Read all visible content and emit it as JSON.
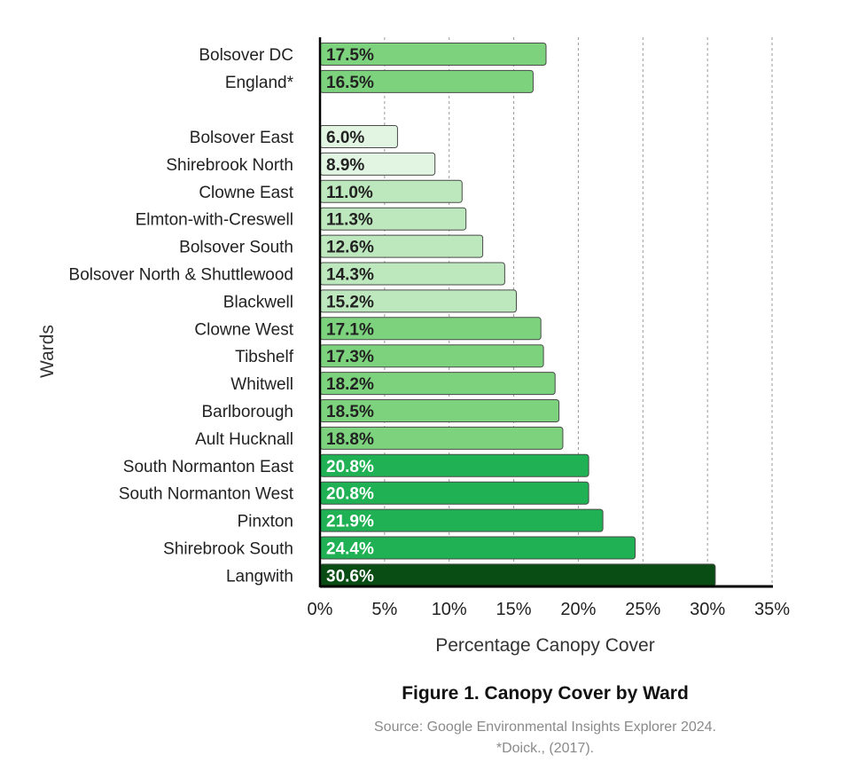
{
  "chart_data": {
    "type": "bar",
    "orientation": "horizontal",
    "title": "Figure 1. Canopy Cover by Ward",
    "source_lines": [
      "Source: Google Environmental Insights Explorer 2024.",
      "*Doick., (2017)."
    ],
    "xlabel": "Percentage Canopy Cover",
    "ylabel": "Wards",
    "xlim": [
      0,
      35
    ],
    "xticks": [
      0,
      5,
      10,
      15,
      20,
      25,
      30,
      35
    ],
    "xtick_labels": [
      "0%",
      "5%",
      "10%",
      "15%",
      "20%",
      "25%",
      "30%",
      "35%"
    ],
    "grid": "vertical dashed",
    "groups": [
      {
        "name": "reference",
        "categories": [
          "Bolsover DC",
          "England*"
        ],
        "values": [
          17.5,
          16.5
        ],
        "labels": [
          "17.5%",
          "16.5%"
        ],
        "colors": [
          "#7dd27d",
          "#7dd27d"
        ],
        "label_colors": [
          "#222222",
          "#222222"
        ]
      },
      {
        "name": "wards",
        "categories": [
          "Bolsover East",
          "Shirebrook North",
          "Clowne East",
          "Elmton-with-Creswell",
          "Bolsover South",
          "Bolsover North & Shuttlewood",
          "Blackwell",
          "Clowne West",
          "Tibshelf",
          "Whitwell",
          "Barlborough",
          "Ault Hucknall",
          "South Normanton East",
          "South Normanton West",
          "Pinxton",
          "Shirebrook South",
          "Langwith"
        ],
        "values": [
          6.0,
          8.9,
          11.0,
          11.3,
          12.6,
          14.3,
          15.2,
          17.1,
          17.3,
          18.2,
          18.5,
          18.8,
          20.8,
          20.8,
          21.9,
          24.4,
          30.6
        ],
        "labels": [
          "6.0%",
          "8.9%",
          "11.0%",
          "11.3%",
          "12.6%",
          "14.3%",
          "15.2%",
          "17.1%",
          "17.3%",
          "18.2%",
          "18.5%",
          "18.8%",
          "20.8%",
          "20.8%",
          "21.9%",
          "24.4%",
          "30.6%"
        ],
        "colors": [
          "#e2f5e2",
          "#e2f5e2",
          "#bde8bd",
          "#bde8bd",
          "#bde8bd",
          "#bde8bd",
          "#bde8bd",
          "#7dd27d",
          "#7dd27d",
          "#7dd27d",
          "#7dd27d",
          "#7dd27d",
          "#1fb153",
          "#1fb153",
          "#1fb153",
          "#1fb153",
          "#0a4d14"
        ],
        "label_colors": [
          "#222222",
          "#222222",
          "#222222",
          "#222222",
          "#222222",
          "#222222",
          "#222222",
          "#222222",
          "#222222",
          "#222222",
          "#222222",
          "#222222",
          "#ffffff",
          "#ffffff",
          "#ffffff",
          "#ffffff",
          "#ffffff"
        ]
      }
    ]
  }
}
